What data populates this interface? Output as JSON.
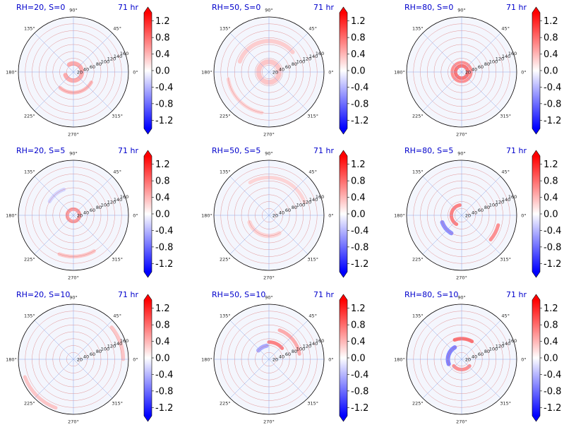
{
  "figure": {
    "theme": {
      "title_color": "#0000cc",
      "colormap_low": "#0000ff",
      "colormap_mid": "#ffffff",
      "colormap_high": "#ff0000",
      "radial_grid_color": "#d86a6a",
      "angular_grid_color": "#8aa7e8"
    }
  },
  "chart_data": [
    {
      "type": "heatmap",
      "projection": "polar",
      "title": "RH=20, S=0",
      "time_label": "71 hr",
      "angle_ticks": [
        "0°",
        "45°",
        "90°",
        "135°",
        "180°",
        "225°",
        "270°",
        "315°"
      ],
      "radial_ticks": [
        20,
        40,
        60,
        80,
        100,
        120,
        140,
        160
      ],
      "rlim": [
        0,
        160
      ],
      "colorbar": {
        "ticks": [
          1.2,
          0.8,
          0.4,
          0.0,
          -0.4,
          -0.8,
          -1.2
        ],
        "range": [
          -1.4,
          1.4
        ],
        "extend": "both"
      },
      "grid": true,
      "features": [
        {
          "r": 25,
          "theta_start": 200,
          "theta_end": 480,
          "value": 0.6,
          "width": 6
        },
        {
          "r": 60,
          "theta_start": 230,
          "theta_end": 330,
          "value": 0.5,
          "width": 5
        }
      ]
    },
    {
      "type": "heatmap",
      "projection": "polar",
      "title": "RH=50, S=0",
      "time_label": "71 hr",
      "angle_ticks": [
        "0°",
        "45°",
        "90°",
        "135°",
        "180°",
        "225°",
        "270°",
        "315°"
      ],
      "radial_ticks": [
        20,
        40,
        60,
        80,
        100,
        120,
        140,
        160
      ],
      "rlim": [
        0,
        160
      ],
      "colorbar": {
        "ticks": [
          1.2,
          0.8,
          0.4,
          0.0,
          -0.4,
          -0.8,
          -1.2
        ],
        "range": [
          -1.4,
          1.4
        ],
        "extend": "both"
      },
      "grid": true,
      "features": [
        {
          "r": 30,
          "theta_start": 0,
          "theta_end": 360,
          "value": 0.4,
          "width": 7
        },
        {
          "r": 90,
          "theta_start": 40,
          "theta_end": 160,
          "value": 0.35,
          "width": 6
        },
        {
          "r": 120,
          "theta_start": 190,
          "theta_end": 260,
          "value": 0.3,
          "width": 5
        }
      ]
    },
    {
      "type": "heatmap",
      "projection": "polar",
      "title": "RH=80, S=0",
      "time_label": "71 hr",
      "angle_ticks": [
        "0°",
        "45°",
        "90°",
        "135°",
        "180°",
        "225°",
        "270°",
        "315°"
      ],
      "radial_ticks": [
        20,
        40,
        60,
        80,
        100,
        120,
        140,
        160
      ],
      "rlim": [
        0,
        160
      ],
      "colorbar": {
        "ticks": [
          1.2,
          0.8,
          0.4,
          0.0,
          -0.4,
          -0.8,
          -1.2
        ],
        "range": [
          -1.4,
          1.4
        ],
        "extend": "both"
      },
      "grid": true,
      "features": [
        {
          "r": 18,
          "theta_start": 0,
          "theta_end": 360,
          "value": 1.0,
          "width": 5
        },
        {
          "r": 28,
          "theta_start": 0,
          "theta_end": 360,
          "value": 0.8,
          "width": 4
        }
      ]
    },
    {
      "type": "heatmap",
      "projection": "polar",
      "title": "RH=20, S=5",
      "time_label": "71 hr",
      "angle_ticks": [
        "0°",
        "45°",
        "90°",
        "135°",
        "180°",
        "225°",
        "270°",
        "315°"
      ],
      "radial_ticks": [
        20,
        40,
        60,
        80,
        100,
        120,
        140,
        160
      ],
      "rlim": [
        0,
        160
      ],
      "colorbar": {
        "ticks": [
          1.2,
          0.8,
          0.4,
          0.0,
          -0.4,
          -0.8,
          -1.2
        ],
        "range": [
          -1.4,
          1.4
        ],
        "extend": "both"
      },
      "grid": true,
      "features": [
        {
          "r": 18,
          "theta_start": 0,
          "theta_end": 360,
          "value": 0.7,
          "width": 5
        },
        {
          "r": 120,
          "theta_start": 250,
          "theta_end": 300,
          "value": 0.4,
          "width": 5
        },
        {
          "r": 80,
          "theta_start": 110,
          "theta_end": 150,
          "value": -0.3,
          "width": 5
        }
      ]
    },
    {
      "type": "heatmap",
      "projection": "polar",
      "title": "RH=50, S=5",
      "time_label": "71 hr",
      "angle_ticks": [
        "0°",
        "45°",
        "90°",
        "135°",
        "180°",
        "225°",
        "270°",
        "315°"
      ],
      "radial_ticks": [
        20,
        40,
        60,
        80,
        100,
        120,
        140,
        160
      ],
      "rlim": [
        0,
        160
      ],
      "colorbar": {
        "ticks": [
          1.2,
          0.8,
          0.4,
          0.0,
          -0.4,
          -0.8,
          -1.2
        ],
        "range": [
          -1.4,
          1.4
        ],
        "extend": "both"
      },
      "grid": true,
      "features": [
        {
          "r": 60,
          "theta_start": 200,
          "theta_end": 300,
          "value": 0.3,
          "width": 6
        },
        {
          "r": 110,
          "theta_start": 20,
          "theta_end": 120,
          "value": 0.3,
          "width": 5
        }
      ]
    },
    {
      "type": "heatmap",
      "projection": "polar",
      "title": "RH=80, S=5",
      "time_label": "71 hr",
      "angle_ticks": [
        "0°",
        "45°",
        "90°",
        "135°",
        "180°",
        "225°",
        "270°",
        "315°"
      ],
      "radial_ticks": [
        20,
        40,
        60,
        80,
        100,
        120,
        140,
        160
      ],
      "rlim": [
        0,
        160
      ],
      "colorbar": {
        "ticks": [
          1.2,
          0.8,
          0.4,
          0.0,
          -0.4,
          -0.8,
          -1.2
        ],
        "range": [
          -1.4,
          1.4
        ],
        "extend": "both"
      },
      "grid": true,
      "features": [
        {
          "r": 30,
          "theta_start": 100,
          "theta_end": 240,
          "value": 0.9,
          "width": 5
        },
        {
          "r": 60,
          "theta_start": 200,
          "theta_end": 240,
          "value": -0.8,
          "width": 6
        },
        {
          "r": 110,
          "theta_start": 320,
          "theta_end": 345,
          "value": 0.8,
          "width": 5
        }
      ]
    },
    {
      "type": "heatmap",
      "projection": "polar",
      "title": "RH=20, S=10",
      "time_label": "71 hr",
      "angle_ticks": [
        "0°",
        "45°",
        "90°",
        "135°",
        "180°",
        "225°",
        "270°",
        "315°"
      ],
      "radial_ticks": [
        20,
        40,
        60,
        80,
        100,
        120,
        140,
        160
      ],
      "rlim": [
        0,
        160
      ],
      "colorbar": {
        "ticks": [
          1.2,
          0.8,
          0.4,
          0.0,
          -0.4,
          -0.8,
          -1.2
        ],
        "range": [
          -1.4,
          1.4
        ],
        "extend": "both"
      },
      "grid": true,
      "features": [
        {
          "r": 150,
          "theta_start": 200,
          "theta_end": 250,
          "value": 0.4,
          "width": 5
        },
        {
          "r": 145,
          "theta_start": 0,
          "theta_end": 40,
          "value": 0.4,
          "width": 5
        }
      ]
    },
    {
      "type": "heatmap",
      "projection": "polar",
      "title": "RH=50, S=10",
      "time_label": "71 hr",
      "angle_ticks": [
        "0°",
        "45°",
        "90°",
        "135°",
        "180°",
        "225°",
        "270°",
        "315°"
      ],
      "radial_ticks": [
        20,
        40,
        60,
        80,
        100,
        120,
        140,
        160
      ],
      "rlim": [
        0,
        160
      ],
      "colorbar": {
        "ticks": [
          1.2,
          0.8,
          0.4,
          0.0,
          -0.4,
          -0.8,
          -1.2
        ],
        "range": [
          -1.4,
          1.4
        ],
        "extend": "both"
      },
      "grid": true,
      "features": [
        {
          "r": 50,
          "theta_start": 40,
          "theta_end": 90,
          "value": 0.9,
          "width": 5
        },
        {
          "r": 90,
          "theta_start": 10,
          "theta_end": 70,
          "value": 0.6,
          "width": 5
        },
        {
          "r": 40,
          "theta_start": 100,
          "theta_end": 140,
          "value": -0.6,
          "width": 6
        }
      ]
    },
    {
      "type": "heatmap",
      "projection": "polar",
      "title": "RH=80, S=10",
      "time_label": "71 hr",
      "angle_ticks": [
        "0°",
        "45°",
        "90°",
        "135°",
        "180°",
        "225°",
        "270°",
        "315°"
      ],
      "radial_ticks": [
        20,
        40,
        60,
        80,
        100,
        120,
        140,
        160
      ],
      "rlim": [
        0,
        160
      ],
      "colorbar": {
        "ticks": [
          1.2,
          0.8,
          0.4,
          0.0,
          -0.4,
          -0.8,
          -1.2
        ],
        "range": [
          -1.4,
          1.4
        ],
        "extend": "both"
      },
      "grid": true,
      "features": [
        {
          "r": 60,
          "theta_start": 60,
          "theta_end": 110,
          "value": 1.0,
          "width": 5
        },
        {
          "r": 40,
          "theta_start": 120,
          "theta_end": 200,
          "value": -0.9,
          "width": 6
        },
        {
          "r": 30,
          "theta_start": 220,
          "theta_end": 320,
          "value": 0.8,
          "width": 5
        }
      ]
    }
  ]
}
